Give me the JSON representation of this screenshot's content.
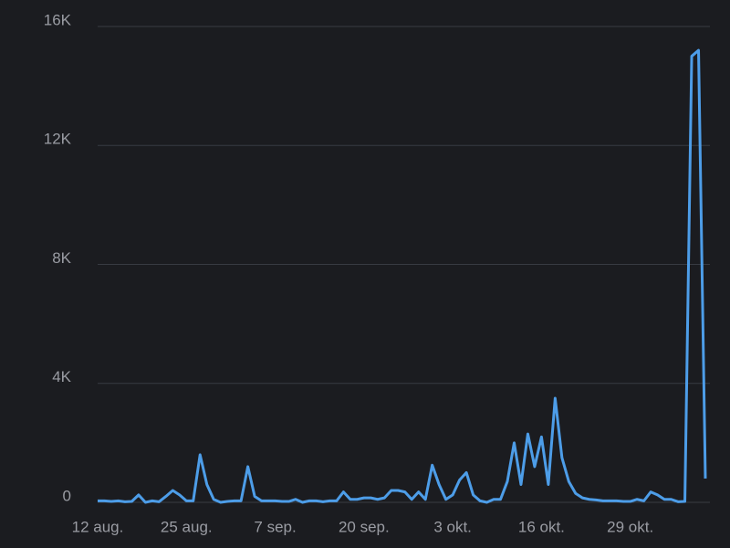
{
  "chart_data": {
    "type": "line",
    "categories": [
      "12 aug.",
      null,
      null,
      null,
      null,
      null,
      null,
      null,
      null,
      null,
      null,
      null,
      null,
      "25 aug.",
      null,
      null,
      null,
      null,
      null,
      null,
      null,
      null,
      null,
      null,
      null,
      null,
      "7 sep.",
      null,
      null,
      null,
      null,
      null,
      null,
      null,
      null,
      null,
      null,
      null,
      null,
      "20 sep.",
      null,
      null,
      null,
      null,
      null,
      null,
      null,
      null,
      null,
      null,
      null,
      null,
      "3 okt.",
      null,
      null,
      null,
      null,
      null,
      null,
      null,
      null,
      null,
      null,
      null,
      null,
      "16 okt.",
      null,
      null,
      null,
      null,
      null,
      null,
      null,
      null,
      null,
      null,
      null,
      null,
      "29 okt.",
      null,
      null,
      null,
      null,
      null,
      null,
      null,
      null,
      null,
      null,
      null
    ],
    "values": [
      50,
      50,
      30,
      50,
      20,
      30,
      250,
      0,
      50,
      20,
      200,
      400,
      250,
      50,
      50,
      1600,
      600,
      100,
      0,
      30,
      50,
      50,
      1200,
      200,
      50,
      50,
      50,
      30,
      30,
      100,
      0,
      50,
      50,
      20,
      50,
      50,
      350,
      100,
      100,
      150,
      150,
      100,
      150,
      400,
      400,
      350,
      100,
      350,
      100,
      1250,
      600,
      100,
      250,
      750,
      1000,
      250,
      50,
      0,
      100,
      100,
      700,
      2000,
      600,
      2300,
      1200,
      2200,
      600,
      3500,
      1500,
      700,
      300,
      150,
      100,
      80,
      50,
      50,
      50,
      30,
      30,
      100,
      50,
      350,
      250,
      100,
      100,
      20,
      30,
      15000,
      15200,
      800
    ],
    "color": "#4d9de8",
    "ylim": [
      0,
      16000
    ],
    "yticks": [
      0,
      {
        "value": 4000,
        "label": "4K"
      },
      {
        "value": 8000,
        "label": "8K"
      },
      {
        "value": 12000,
        "label": "12K"
      },
      {
        "value": 16000,
        "label": "16K"
      }
    ],
    "grid": true
  }
}
